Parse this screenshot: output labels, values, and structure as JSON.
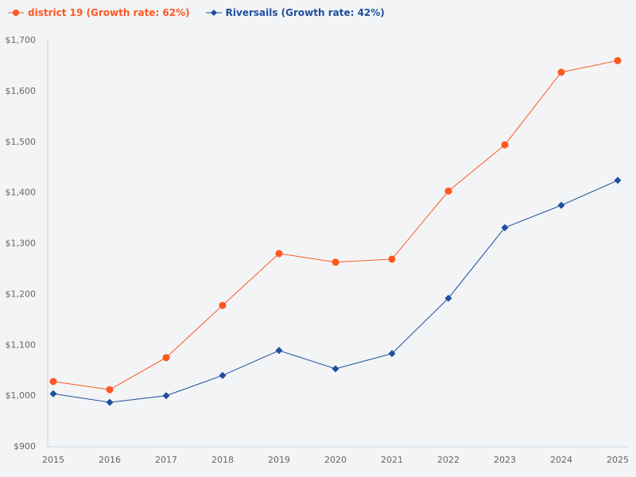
{
  "chart_data": {
    "type": "line",
    "categories": [
      "2015",
      "2016",
      "2017",
      "2018",
      "2019",
      "2020",
      "2021",
      "2022",
      "2023",
      "2024",
      "2025"
    ],
    "series": [
      {
        "name": "district 19 (Growth rate: 62%)",
        "color": "#ff5722",
        "marker": "circle",
        "values": [
          1027,
          1011,
          1074,
          1177,
          1279,
          1262,
          1268,
          1402,
          1493,
          1636,
          1659
        ]
      },
      {
        "name": "Riversails (Growth rate: 42%)",
        "color": "#1f4e9e",
        "marker": "diamond",
        "values": [
          1003,
          986,
          999,
          1039,
          1088,
          1052,
          1082,
          1191,
          1330,
          1374,
          1423
        ]
      }
    ],
    "ylim": [
      900,
      1700
    ],
    "yticks": [
      "$900",
      "$1,000",
      "$1,100",
      "$1,200",
      "$1,300",
      "$1,400",
      "$1,500",
      "$1,600",
      "$1,700"
    ],
    "grid": false,
    "legend": "top-left"
  }
}
